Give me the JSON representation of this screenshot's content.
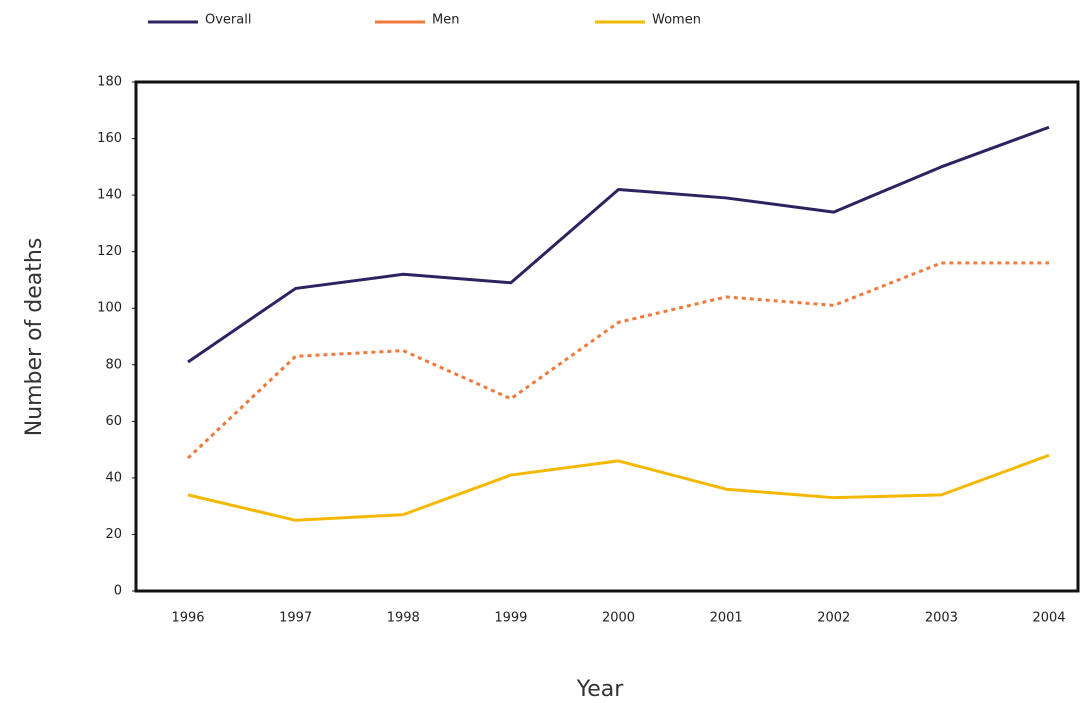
{
  "chart_data": {
    "type": "line",
    "xlabel": "Year",
    "ylabel": "Number of deaths",
    "categories": [
      "1996",
      "1997",
      "1998",
      "1999",
      "2000",
      "2001",
      "2002",
      "2003",
      "2004"
    ],
    "series": [
      {
        "name": "Overall",
        "color": "#2b2460",
        "line_style": "solid",
        "values": [
          81,
          107,
          112,
          109,
          142,
          139,
          134,
          150,
          164
        ]
      },
      {
        "name": "Men",
        "color": "#f07a3c",
        "line_style": "dotted",
        "values": [
          47,
          83,
          85,
          68,
          95,
          104,
          101,
          116,
          116
        ]
      },
      {
        "name": "Women",
        "color": "#f5b800",
        "line_style": "solid",
        "values": [
          34,
          25,
          27,
          41,
          46,
          36,
          33,
          34,
          48
        ]
      }
    ],
    "ylim": [
      0,
      180
    ],
    "yticks": [
      0,
      20,
      40,
      60,
      80,
      100,
      120,
      140,
      160,
      180
    ],
    "legend": "top"
  }
}
